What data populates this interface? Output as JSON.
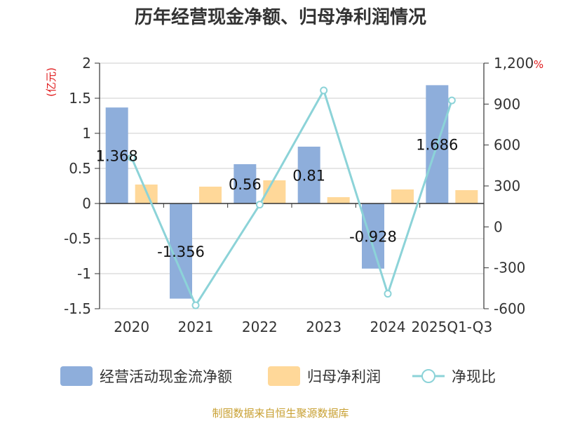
{
  "chart_data": {
    "type": "bar",
    "title": "历年经营现金净额、归母净利润情况",
    "categories": [
      "2020",
      "2021",
      "2022",
      "2023",
      "2024",
      "2025Q1-Q3"
    ],
    "series": [
      {
        "name": "经营活动现金流净额",
        "type": "bar",
        "axis": "left",
        "color": "#8eaedb",
        "values": [
          1.368,
          -1.356,
          0.56,
          0.81,
          -0.928,
          1.686
        ],
        "labels": [
          "1.368",
          "-1.356",
          "0.56",
          "0.81",
          "-0.928",
          "1.686"
        ]
      },
      {
        "name": "归母净利润",
        "type": "bar",
        "axis": "left",
        "color": "#ffd899",
        "values": [
          0.27,
          0.24,
          0.33,
          0.09,
          0.2,
          0.19
        ]
      },
      {
        "name": "净现比",
        "type": "line",
        "axis": "right",
        "color": "#8cd3d8",
        "values": [
          507,
          -575,
          163,
          1000,
          -490,
          927
        ]
      }
    ],
    "y_left": {
      "unit": "(亿元)",
      "min": -1.5,
      "max": 2,
      "ticks": [
        "-1.5",
        "-1",
        "-0.5",
        "0",
        "0.5",
        "1",
        "1.5",
        "2"
      ]
    },
    "y_right": {
      "unit": "%",
      "min": -600,
      "max": 1200,
      "ticks": [
        "-600",
        "-300",
        "0",
        "300",
        "600",
        "900",
        "1,200"
      ]
    },
    "grid": true,
    "legend_position": "bottom"
  },
  "footer": {
    "source": "制图数据来自恒生聚源数据库"
  }
}
